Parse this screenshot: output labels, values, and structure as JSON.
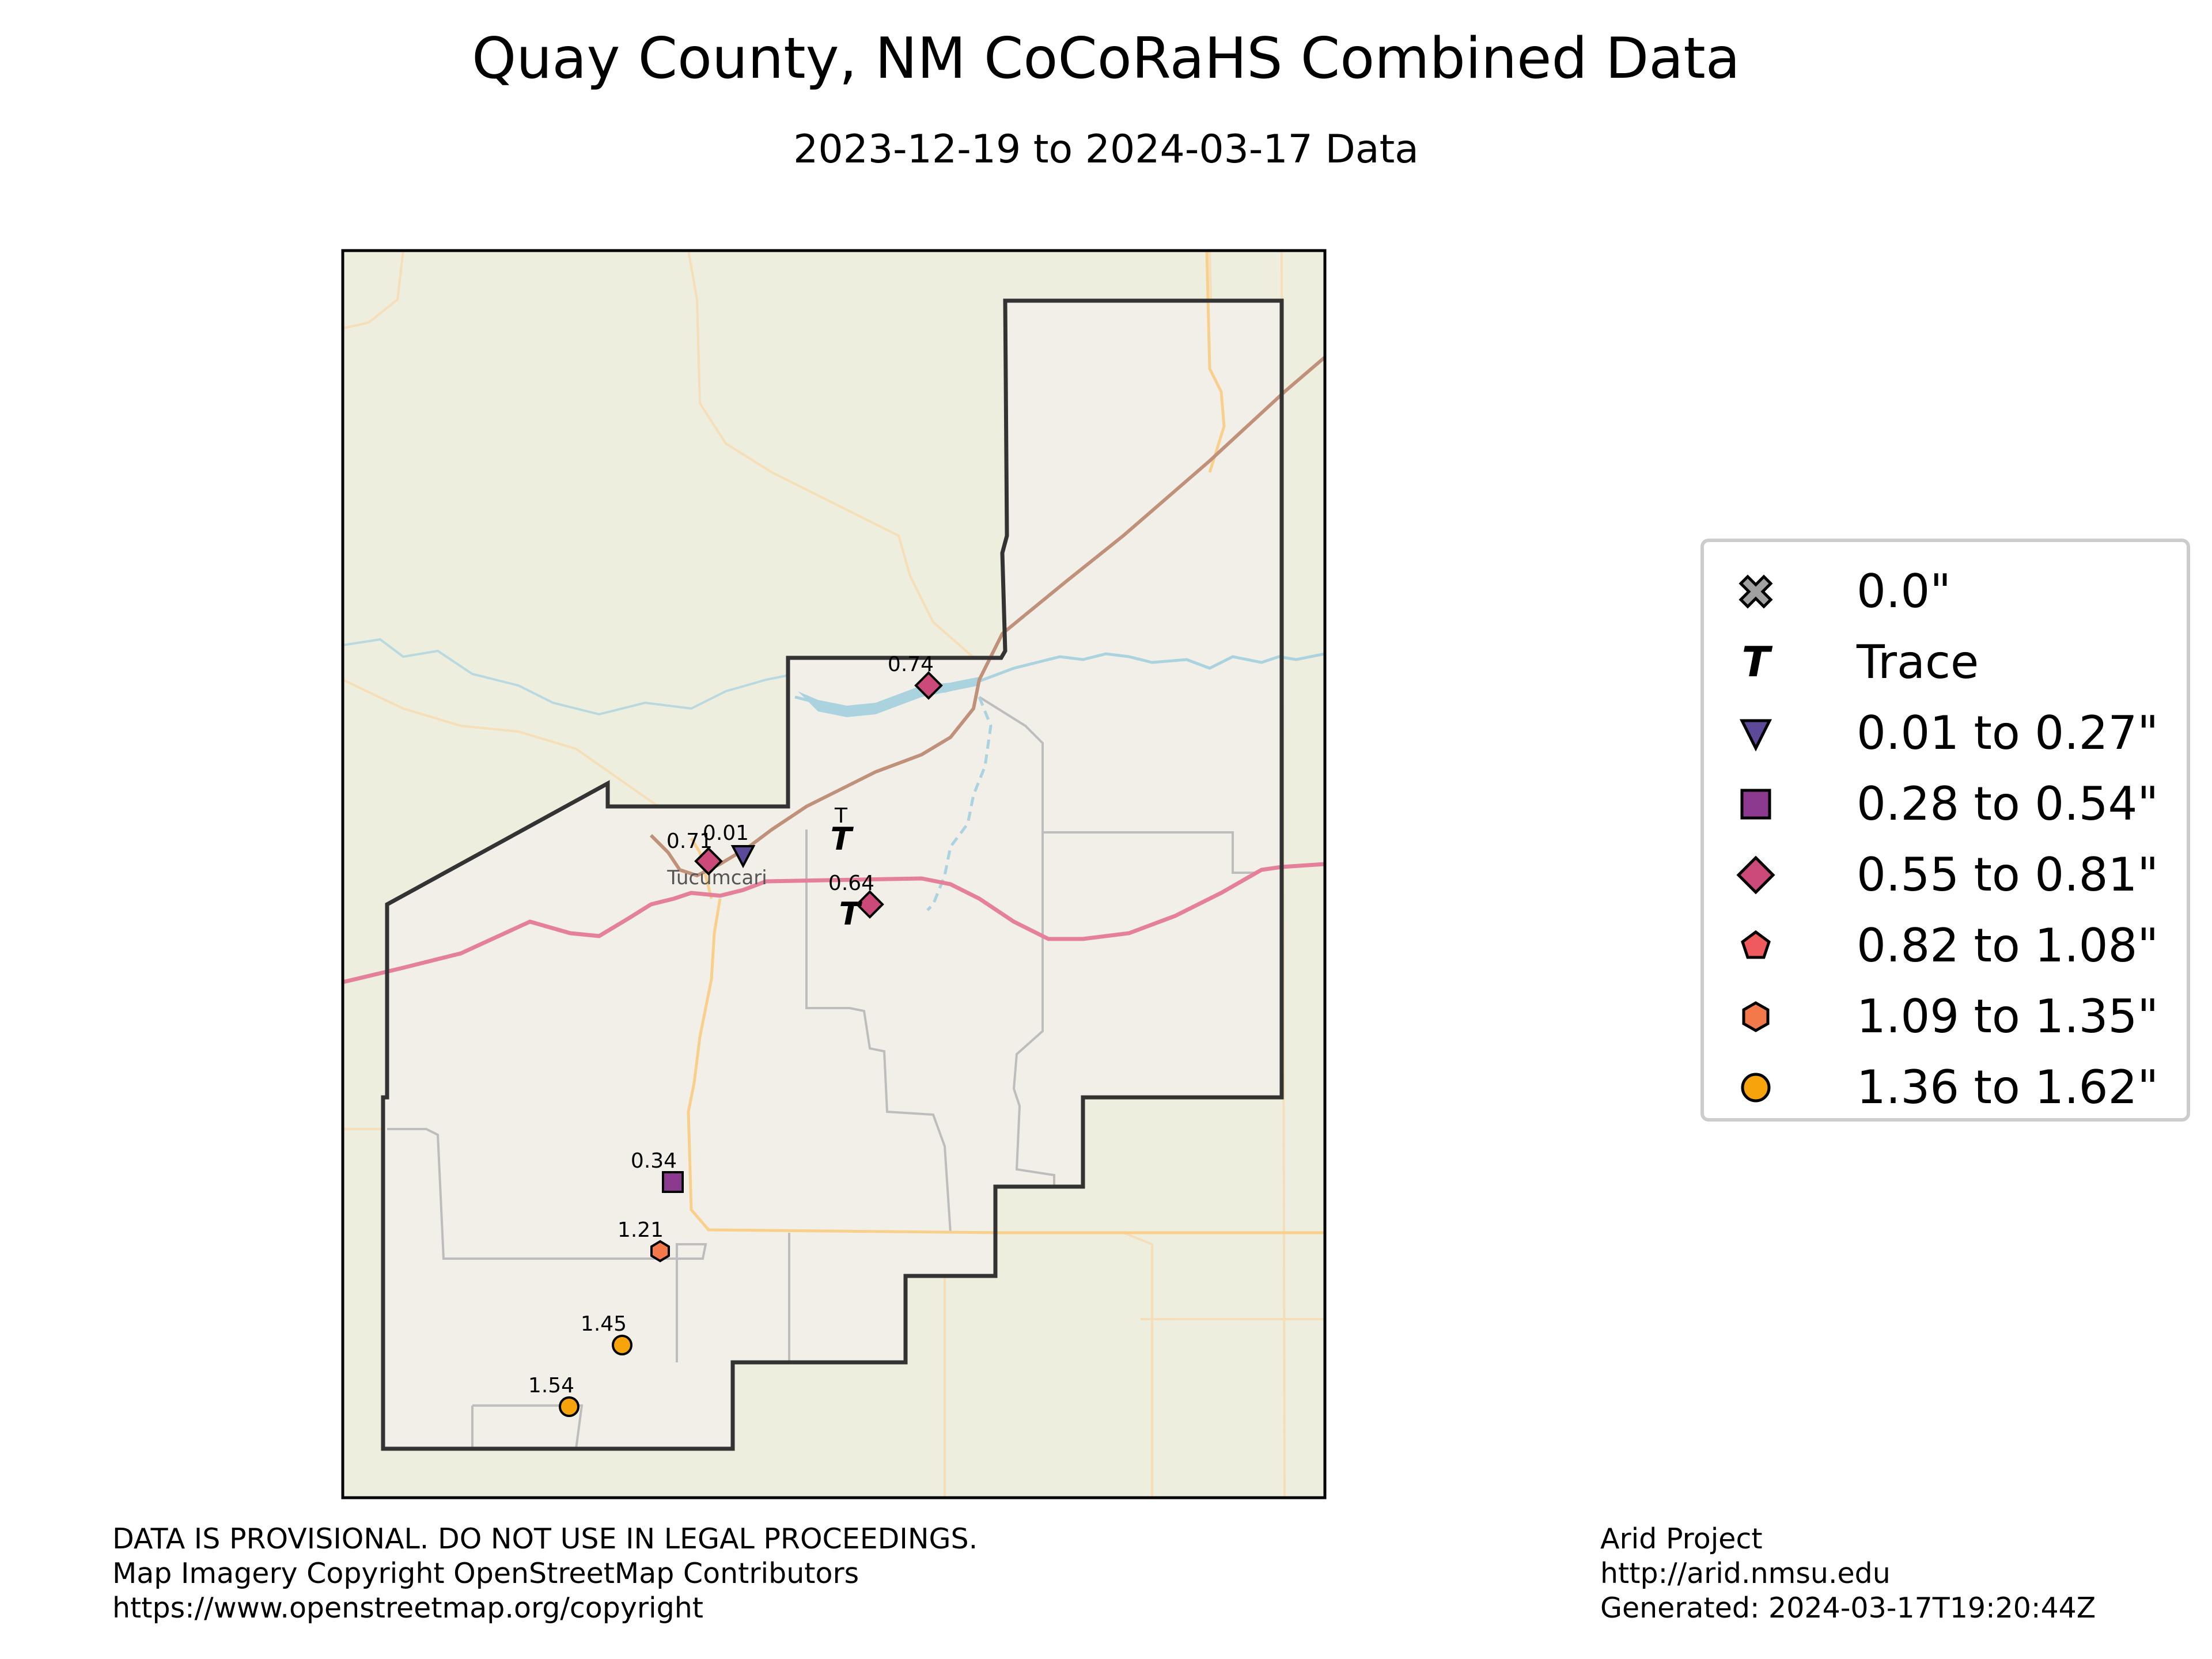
{
  "title": "Quay County, NM CoCoRaHS Combined Data",
  "subtitle": "2023-12-19 to 2024-03-17 Data",
  "colors": {
    "map_background": "#eeeedf",
    "county_fill": "#f2efe9",
    "county_border": "#333333",
    "highway": "#e5809a",
    "railroad": "#c0917a",
    "minor_road": "#f9cf8c",
    "water": "#aad3df",
    "admin_border": "#bdbdbd",
    "zero": "#a0a0a0",
    "range_0_01_0_27": "#5c4a99",
    "range_0_28_0_54": "#8b3a8f",
    "range_0_55_0_81": "#cc4a7a",
    "range_0_82_1_08": "#ef5a5f",
    "range_1_09_1_35": "#f3794b",
    "range_1_36_1_62": "#f6a30c"
  },
  "map": {
    "place_label": "Tucumcari",
    "stations": [
      {
        "label": "0.74",
        "symbol": "diamond",
        "color": "#cc4a7a"
      },
      {
        "label": "0.71",
        "symbol": "diamond",
        "color": "#cc4a7a"
      },
      {
        "label": "0.01",
        "symbol": "triangle-down",
        "color": "#5c4a99"
      },
      {
        "label": "T",
        "symbol": "trace",
        "color": "#000000"
      },
      {
        "label": "0.64",
        "symbol": "diamond",
        "color": "#cc4a7a"
      },
      {
        "label": "",
        "symbol": "trace",
        "color": "#000000"
      },
      {
        "label": "0.34",
        "symbol": "square",
        "color": "#8b3a8f"
      },
      {
        "label": "1.21",
        "symbol": "hexagon",
        "color": "#f3794b"
      },
      {
        "label": "1.45",
        "symbol": "circle",
        "color": "#f6a30c"
      },
      {
        "label": "1.54",
        "symbol": "circle",
        "color": "#f6a30c"
      }
    ]
  },
  "legend": {
    "items": [
      {
        "label": "0.0\"",
        "symbol": "x-icon",
        "color": "#a0a0a0"
      },
      {
        "label": "Trace",
        "symbol": "trace-icon",
        "color": "#000000"
      },
      {
        "label": "0.01 to 0.27\"",
        "symbol": "triangle-down-icon",
        "color": "#5c4a99"
      },
      {
        "label": "0.28 to 0.54\"",
        "symbol": "square-icon",
        "color": "#8b3a8f"
      },
      {
        "label": "0.55 to 0.81\"",
        "symbol": "diamond-icon",
        "color": "#cc4a7a"
      },
      {
        "label": "0.82 to 1.08\"",
        "symbol": "pentagon-icon",
        "color": "#ef5a5f"
      },
      {
        "label": "1.09 to 1.35\"",
        "symbol": "hexagon-icon",
        "color": "#f3794b"
      },
      {
        "label": "1.36 to 1.62\"",
        "symbol": "circle-icon",
        "color": "#f6a30c"
      }
    ]
  },
  "footer_left": {
    "line1": "DATA IS PROVISIONAL. DO NOT USE IN LEGAL PROCEEDINGS.",
    "line2": "Map Imagery Copyright OpenStreetMap Contributors",
    "line3": "https://www.openstreetmap.org/copyright"
  },
  "footer_right": {
    "line1": "Arid Project",
    "line2": "http://arid.nmsu.edu",
    "line3": "Generated: 2024-03-17T19:20:44Z"
  }
}
